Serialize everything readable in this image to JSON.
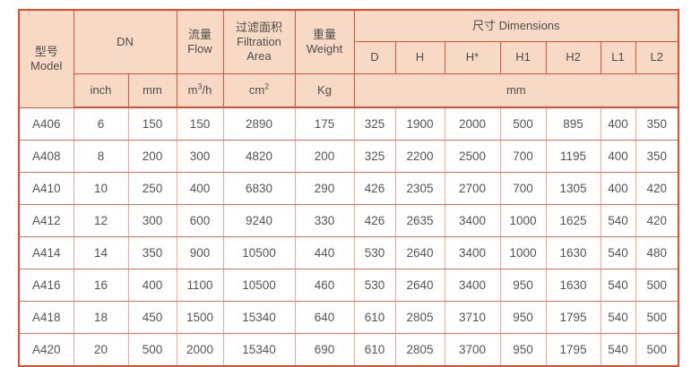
{
  "table": {
    "header": {
      "model_zh": "型号",
      "model_en": "Model",
      "dn": "DN",
      "flow_zh": "流量",
      "flow_en": "Flow",
      "filtration_zh": "过滤面积",
      "filtration_en1": "Filtration",
      "filtration_en2": "Area",
      "weight_zh": "重量",
      "weight_en": "Weight",
      "dimensions": "尺寸 Dimensions",
      "dim_cols": [
        "D",
        "H",
        "H*",
        "H1",
        "H2",
        "L1",
        "L2"
      ],
      "unit_inch": "inch",
      "unit_mm": "mm",
      "unit_flow_base": "m",
      "unit_flow_sup": "3",
      "unit_flow_rest": "/h",
      "unit_area_base": "cm",
      "unit_area_sup": "2",
      "unit_weight": "Kg",
      "unit_dim_mm": "mm"
    },
    "rows": [
      {
        "model": "A406",
        "cells": [
          "6",
          "150",
          "150",
          "2890",
          "175",
          "325",
          "1900",
          "2000",
          "500",
          "895",
          "400",
          "350"
        ]
      },
      {
        "model": "A408",
        "cells": [
          "8",
          "200",
          "300",
          "4820",
          "200",
          "325",
          "2200",
          "2500",
          "700",
          "1195",
          "400",
          "350"
        ]
      },
      {
        "model": "A410",
        "cells": [
          "10",
          "250",
          "400",
          "6830",
          "290",
          "426",
          "2305",
          "2700",
          "700",
          "1305",
          "400",
          "420"
        ]
      },
      {
        "model": "A412",
        "cells": [
          "12",
          "300",
          "600",
          "9240",
          "330",
          "426",
          "2635",
          "3400",
          "1000",
          "1625",
          "540",
          "420"
        ]
      },
      {
        "model": "A414",
        "cells": [
          "14",
          "350",
          "900",
          "10500",
          "440",
          "530",
          "2640",
          "3400",
          "1000",
          "1630",
          "540",
          "480"
        ]
      },
      {
        "model": "A416",
        "cells": [
          "16",
          "400",
          "1100",
          "10500",
          "460",
          "530",
          "2640",
          "3400",
          "950",
          "1630",
          "540",
          "500"
        ]
      },
      {
        "model": "A418",
        "cells": [
          "18",
          "450",
          "1500",
          "15340",
          "640",
          "610",
          "2805",
          "3710",
          "950",
          "1795",
          "540",
          "500"
        ]
      },
      {
        "model": "A420",
        "cells": [
          "20",
          "500",
          "2000",
          "15340",
          "690",
          "610",
          "2805",
          "3700",
          "950",
          "1795",
          "540",
          "500"
        ]
      }
    ],
    "colors": {
      "header_bg": "#f8d9c5",
      "border_strong": "#e0523a",
      "border_outer": "#dd4d2e",
      "border_light": "#f1a896",
      "text": "#4d4d4d"
    }
  }
}
